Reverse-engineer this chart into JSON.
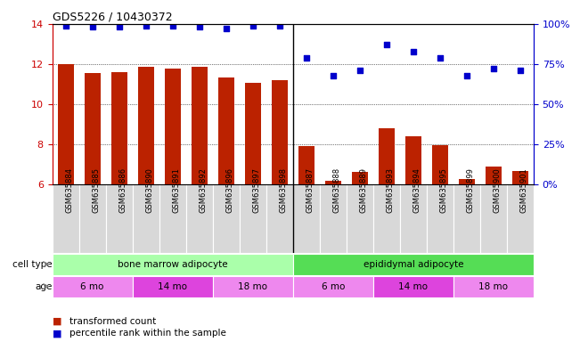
{
  "title": "GDS5226 / 10430372",
  "samples": [
    "GSM635884",
    "GSM635885",
    "GSM635886",
    "GSM635890",
    "GSM635891",
    "GSM635892",
    "GSM635896",
    "GSM635897",
    "GSM635898",
    "GSM635887",
    "GSM635888",
    "GSM635889",
    "GSM635893",
    "GSM635894",
    "GSM635895",
    "GSM635899",
    "GSM635900",
    "GSM635901"
  ],
  "bar_values": [
    12.0,
    11.55,
    11.6,
    11.85,
    11.8,
    11.85,
    11.35,
    11.05,
    11.2,
    7.9,
    6.2,
    6.65,
    8.8,
    8.4,
    7.95,
    6.3,
    6.9,
    6.7
  ],
  "dot_values": [
    99,
    98,
    98,
    99,
    99,
    98,
    97,
    99,
    99,
    79,
    68,
    71,
    87,
    83,
    79,
    68,
    72,
    71
  ],
  "bar_color": "#bb2200",
  "dot_color": "#0000cc",
  "ylim_left": [
    6,
    14
  ],
  "ylim_right": [
    0,
    100
  ],
  "yticks_left": [
    6,
    8,
    10,
    12,
    14
  ],
  "yticks_right": [
    0,
    25,
    50,
    75,
    100
  ],
  "ytick_labels_right": [
    "0%",
    "25%",
    "50%",
    "75%",
    "100%"
  ],
  "grid_values": [
    8,
    10,
    12
  ],
  "cell_type_groups": [
    {
      "label": "bone marrow adipocyte",
      "start": 0,
      "end": 9,
      "color": "#aaffaa"
    },
    {
      "label": "epididymal adipocyte",
      "start": 9,
      "end": 18,
      "color": "#55dd55"
    }
  ],
  "age_groups": [
    {
      "label": "6 mo",
      "start": 0,
      "end": 3,
      "color": "#ee88ee"
    },
    {
      "label": "14 mo",
      "start": 3,
      "end": 6,
      "color": "#dd44dd"
    },
    {
      "label": "18 mo",
      "start": 6,
      "end": 9,
      "color": "#ee88ee"
    },
    {
      "label": "6 mo",
      "start": 9,
      "end": 12,
      "color": "#ee88ee"
    },
    {
      "label": "14 mo",
      "start": 12,
      "end": 15,
      "color": "#dd44dd"
    },
    {
      "label": "18 mo",
      "start": 15,
      "end": 18,
      "color": "#ee88ee"
    }
  ],
  "cell_type_row_label": "cell type",
  "age_row_label": "age",
  "legend_items": [
    {
      "color": "#bb2200",
      "label": "transformed count"
    },
    {
      "color": "#0000cc",
      "label": "percentile rank within the sample"
    }
  ],
  "separator_positions": [
    9
  ],
  "bar_width": 0.6,
  "sample_box_color": "#d8d8d8",
  "background_color": "#ffffff"
}
